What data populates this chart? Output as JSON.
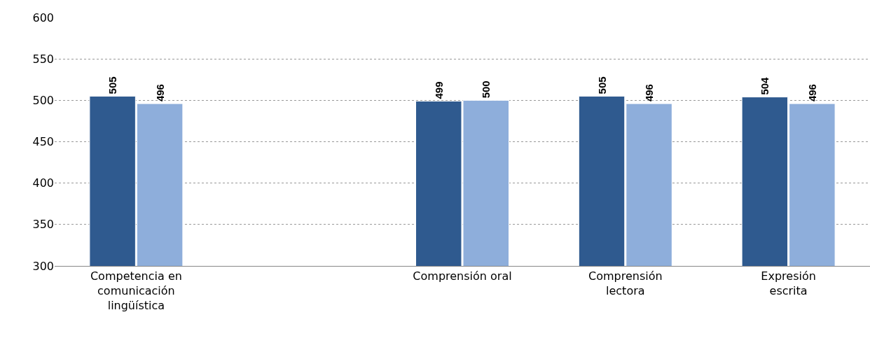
{
  "chart_data": {
    "type": "bar",
    "categories": [
      "Competencia en comunicación lingüística",
      null,
      "Comprensión oral",
      "Comprensión lectora",
      "Expresión escrita"
    ],
    "series": [
      {
        "color": "#2f5a8f",
        "values": [
          505,
          null,
          499,
          505,
          504
        ]
      },
      {
        "color": "#8eaedb",
        "values": [
          496,
          null,
          500,
          496,
          496
        ]
      }
    ],
    "ylim": [
      300,
      600
    ],
    "yticks": [
      300,
      350,
      400,
      450,
      500,
      550,
      600
    ],
    "grid": "y",
    "legend": false,
    "data_labels": true
  }
}
